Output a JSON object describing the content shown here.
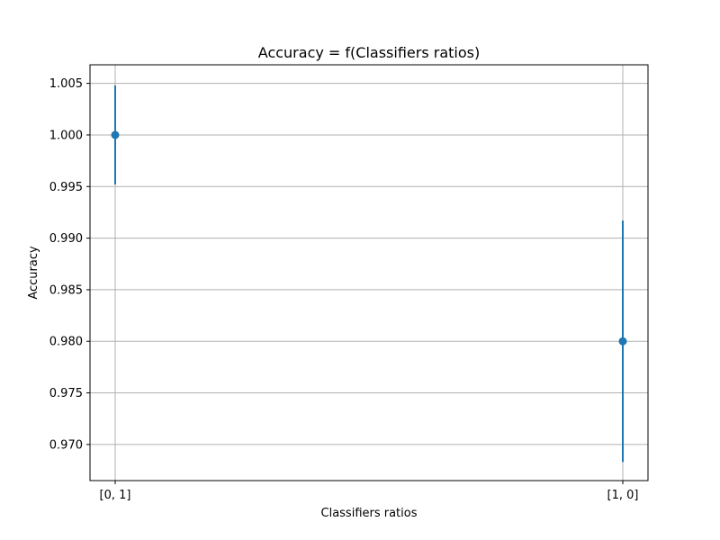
{
  "chart_data": {
    "type": "scatter",
    "title": "Accuracy = f(Classifiers ratios)",
    "xlabel": "Classifiers ratios",
    "ylabel": "Accuracy",
    "categories": [
      "[0, 1]",
      "[1, 0]"
    ],
    "series": [
      {
        "values": [
          1.0,
          0.98
        ],
        "error_low": [
          0.9952,
          0.9683
        ],
        "error_high": [
          1.0048,
          0.9917
        ]
      }
    ],
    "ylim": [
      0.9665,
      1.0068
    ],
    "yticks": [
      0.97,
      0.975,
      0.98,
      0.985,
      0.99,
      0.995,
      1.0,
      1.005
    ],
    "ytick_labels": [
      "0.970",
      "0.975",
      "0.980",
      "0.985",
      "0.990",
      "0.995",
      "1.000",
      "1.005"
    ],
    "grid": true,
    "colors": {
      "series": "#1f77b4",
      "grid": "#b0b0b0"
    }
  }
}
